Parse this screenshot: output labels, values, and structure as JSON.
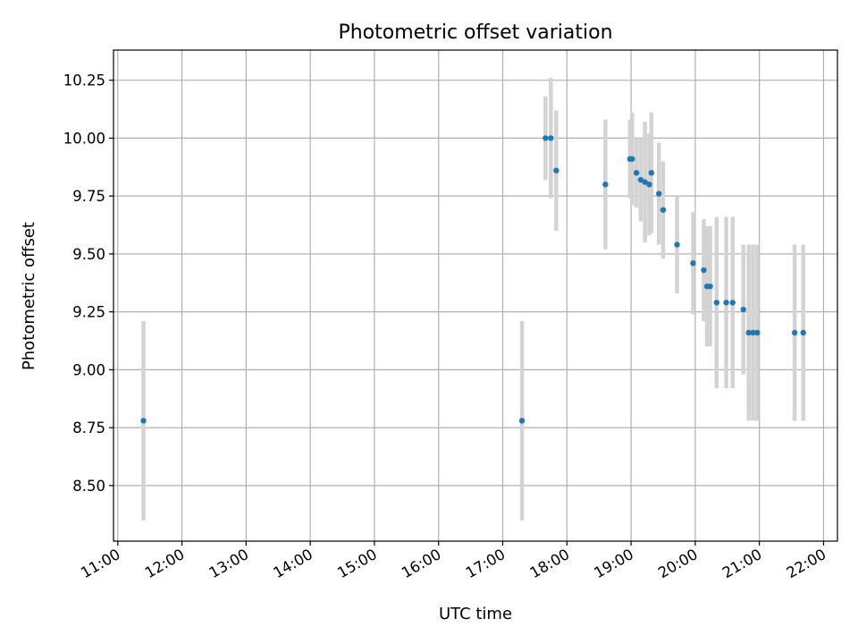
{
  "chart_data": {
    "type": "scatter",
    "title": "Photometric offset variation",
    "xlabel": "UTC time",
    "ylabel": "Photometric offset",
    "x_unit": "UTC time (HH:MM)",
    "xlim": [
      "10:56",
      "22:13"
    ],
    "ylim": [
      8.26,
      10.38
    ],
    "grid": true,
    "x_ticks": [
      "11:00",
      "12:00",
      "13:00",
      "14:00",
      "15:00",
      "16:00",
      "17:00",
      "18:00",
      "19:00",
      "20:00",
      "21:00",
      "22:00"
    ],
    "y_ticks": [
      "8.50",
      "8.75",
      "9.00",
      "9.25",
      "9.50",
      "9.75",
      "10.00",
      "10.25"
    ],
    "colors": {
      "points": "#1f77b4",
      "errorbars": "#d3d3d3",
      "grid": "#b0b0b0"
    },
    "points": [
      {
        "x": "11:24",
        "y": 8.78,
        "err": 0.43
      },
      {
        "x": "17:18",
        "y": 8.78,
        "err": 0.43
      },
      {
        "x": "17:40",
        "y": 10.0,
        "err": 0.18
      },
      {
        "x": "17:45",
        "y": 10.0,
        "err": 0.26
      },
      {
        "x": "17:50",
        "y": 9.86,
        "err": 0.26
      },
      {
        "x": "18:36",
        "y": 9.8,
        "err": 0.28
      },
      {
        "x": "18:59",
        "y": 9.91,
        "err": 0.17
      },
      {
        "x": "19:01",
        "y": 9.91,
        "err": 0.2
      },
      {
        "x": "19:05",
        "y": 9.85,
        "err": 0.15
      },
      {
        "x": "19:09",
        "y": 9.82,
        "err": 0.18
      },
      {
        "x": "19:13",
        "y": 9.81,
        "err": 0.26
      },
      {
        "x": "19:17",
        "y": 9.8,
        "err": 0.22
      },
      {
        "x": "19:19",
        "y": 9.85,
        "err": 0.26
      },
      {
        "x": "19:26",
        "y": 9.76,
        "err": 0.22
      },
      {
        "x": "19:30",
        "y": 9.69,
        "err": 0.21
      },
      {
        "x": "19:43",
        "y": 9.54,
        "err": 0.21
      },
      {
        "x": "19:58",
        "y": 9.46,
        "err": 0.22
      },
      {
        "x": "20:08",
        "y": 9.43,
        "err": 0.22
      },
      {
        "x": "20:11",
        "y": 9.36,
        "err": 0.26
      },
      {
        "x": "20:14",
        "y": 9.36,
        "err": 0.26
      },
      {
        "x": "20:20",
        "y": 9.29,
        "err": 0.37
      },
      {
        "x": "20:29",
        "y": 9.29,
        "err": 0.37
      },
      {
        "x": "20:35",
        "y": 9.29,
        "err": 0.37
      },
      {
        "x": "20:45",
        "y": 9.26,
        "err": 0.28
      },
      {
        "x": "20:50",
        "y": 9.16,
        "err": 0.38
      },
      {
        "x": "20:54",
        "y": 9.16,
        "err": 0.38
      },
      {
        "x": "20:58",
        "y": 9.16,
        "err": 0.38
      },
      {
        "x": "21:33",
        "y": 9.16,
        "err": 0.38
      },
      {
        "x": "21:41",
        "y": 9.16,
        "err": 0.38
      }
    ]
  }
}
